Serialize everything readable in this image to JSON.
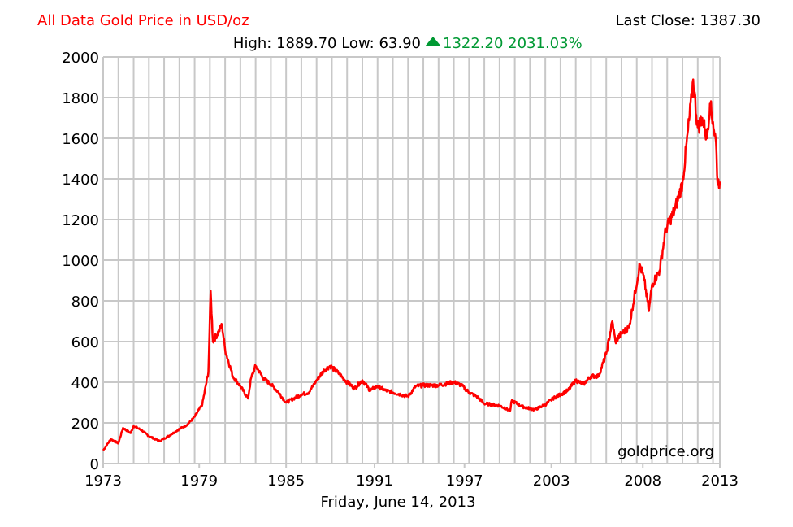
{
  "chart_data": {
    "type": "line",
    "title": "All Data Gold Price in USD/oz",
    "last_close_label": "Last Close: 1387.30",
    "stats": {
      "high_low": "High: 1889.70 Low: 63.90",
      "change": "1322.20 2031.03%",
      "change_color": "#009933"
    },
    "subtitle_date": "Friday, June 14, 2013",
    "watermark": "goldprice.org",
    "xlabel": "",
    "ylabel": "",
    "xlim": [
      1973,
      2013.45
    ],
    "ylim": [
      0,
      2000
    ],
    "yticks": [
      0,
      200,
      400,
      600,
      800,
      1000,
      1200,
      1400,
      1600,
      1800,
      2000
    ],
    "xticks": [
      {
        "value": 1973,
        "label": "1973"
      },
      {
        "value": 1979.3,
        "label": "1979"
      },
      {
        "value": 1985,
        "label": "1985"
      },
      {
        "value": 1990.8,
        "label": "1991"
      },
      {
        "value": 1996.7,
        "label": "1997"
      },
      {
        "value": 2002.4,
        "label": "2003"
      },
      {
        "value": 2008.4,
        "label": "2008"
      },
      {
        "value": 2013.45,
        "label": "2013"
      }
    ],
    "grid": true,
    "line_color": "#ff0000",
    "series": [
      {
        "name": "Gold Price USD/oz",
        "points": [
          [
            1973.0,
            65
          ],
          [
            1973.5,
            120
          ],
          [
            1974.0,
            100
          ],
          [
            1974.3,
            175
          ],
          [
            1974.8,
            150
          ],
          [
            1975.0,
            185
          ],
          [
            1975.5,
            165
          ],
          [
            1976.0,
            135
          ],
          [
            1976.7,
            110
          ],
          [
            1977.5,
            145
          ],
          [
            1978.0,
            170
          ],
          [
            1978.5,
            190
          ],
          [
            1979.0,
            230
          ],
          [
            1979.5,
            290
          ],
          [
            1979.9,
            450
          ],
          [
            1980.05,
            850
          ],
          [
            1980.2,
            600
          ],
          [
            1980.8,
            680
          ],
          [
            1981.0,
            560
          ],
          [
            1981.5,
            430
          ],
          [
            1982.0,
            380
          ],
          [
            1982.5,
            320
          ],
          [
            1982.7,
            420
          ],
          [
            1983.0,
            480
          ],
          [
            1983.5,
            420
          ],
          [
            1984.0,
            390
          ],
          [
            1984.5,
            350
          ],
          [
            1985.0,
            300
          ],
          [
            1985.5,
            320
          ],
          [
            1986.0,
            340
          ],
          [
            1986.5,
            350
          ],
          [
            1987.0,
            410
          ],
          [
            1987.5,
            460
          ],
          [
            1987.9,
            480
          ],
          [
            1988.5,
            440
          ],
          [
            1989.0,
            400
          ],
          [
            1989.5,
            370
          ],
          [
            1990.0,
            410
          ],
          [
            1990.5,
            360
          ],
          [
            1991.0,
            380
          ],
          [
            1991.5,
            360
          ],
          [
            1992.0,
            350
          ],
          [
            1992.5,
            340
          ],
          [
            1993.0,
            330
          ],
          [
            1993.5,
            380
          ],
          [
            1994.0,
            385
          ],
          [
            1995.0,
            385
          ],
          [
            1996.0,
            400
          ],
          [
            1996.5,
            385
          ],
          [
            1997.0,
            350
          ],
          [
            1997.5,
            330
          ],
          [
            1998.0,
            295
          ],
          [
            1999.0,
            285
          ],
          [
            1999.7,
            260
          ],
          [
            1999.8,
            310
          ],
          [
            2000.5,
            280
          ],
          [
            2001.3,
            265
          ],
          [
            2002.0,
            290
          ],
          [
            2002.5,
            320
          ],
          [
            2003.0,
            340
          ],
          [
            2003.5,
            360
          ],
          [
            2004.0,
            410
          ],
          [
            2004.5,
            390
          ],
          [
            2005.0,
            430
          ],
          [
            2005.5,
            430
          ],
          [
            2006.0,
            540
          ],
          [
            2006.4,
            700
          ],
          [
            2006.6,
            600
          ],
          [
            2007.0,
            640
          ],
          [
            2007.5,
            670
          ],
          [
            2008.2,
            980
          ],
          [
            2008.5,
            900
          ],
          [
            2008.8,
            750
          ],
          [
            2009.0,
            880
          ],
          [
            2009.5,
            950
          ],
          [
            2009.9,
            1150
          ],
          [
            2010.5,
            1250
          ],
          [
            2011.0,
            1380
          ],
          [
            2011.6,
            1800
          ],
          [
            2011.7,
            1889.7
          ],
          [
            2012.0,
            1650
          ],
          [
            2012.3,
            1700
          ],
          [
            2012.6,
            1600
          ],
          [
            2012.8,
            1770
          ],
          [
            2013.0,
            1680
          ],
          [
            2013.2,
            1580
          ],
          [
            2013.3,
            1380
          ],
          [
            2013.45,
            1387.3
          ]
        ]
      }
    ]
  }
}
